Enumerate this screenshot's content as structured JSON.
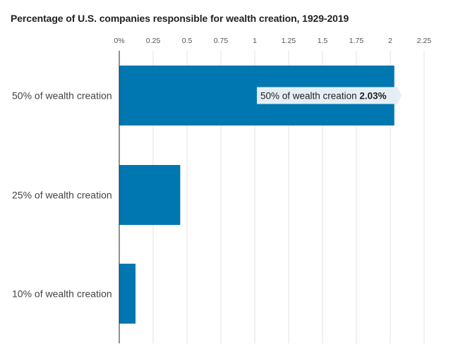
{
  "chart_data": {
    "type": "bar",
    "orientation": "horizontal",
    "title": "Percentage of U.S. companies responsible for wealth creation, 1929-2019",
    "categories": [
      "50% of wealth creation",
      "25% of wealth creation",
      "10% of wealth creation"
    ],
    "values": [
      2.03,
      0.45,
      0.12
    ],
    "xlim": [
      0,
      2.25
    ],
    "x_ticks": [
      0,
      0.25,
      0.5,
      0.75,
      1,
      1.25,
      1.5,
      1.75,
      2,
      2.25
    ],
    "x_tick_labels": [
      "0%",
      "0.25",
      "0.5",
      "0.75",
      "1",
      "1.25",
      "1.5",
      "1.75",
      "2",
      "2.25"
    ],
    "grid": true,
    "bar_color": "#0077b0",
    "tooltip": {
      "category": "50% of wealth creation",
      "value_label": "2.03%"
    }
  }
}
